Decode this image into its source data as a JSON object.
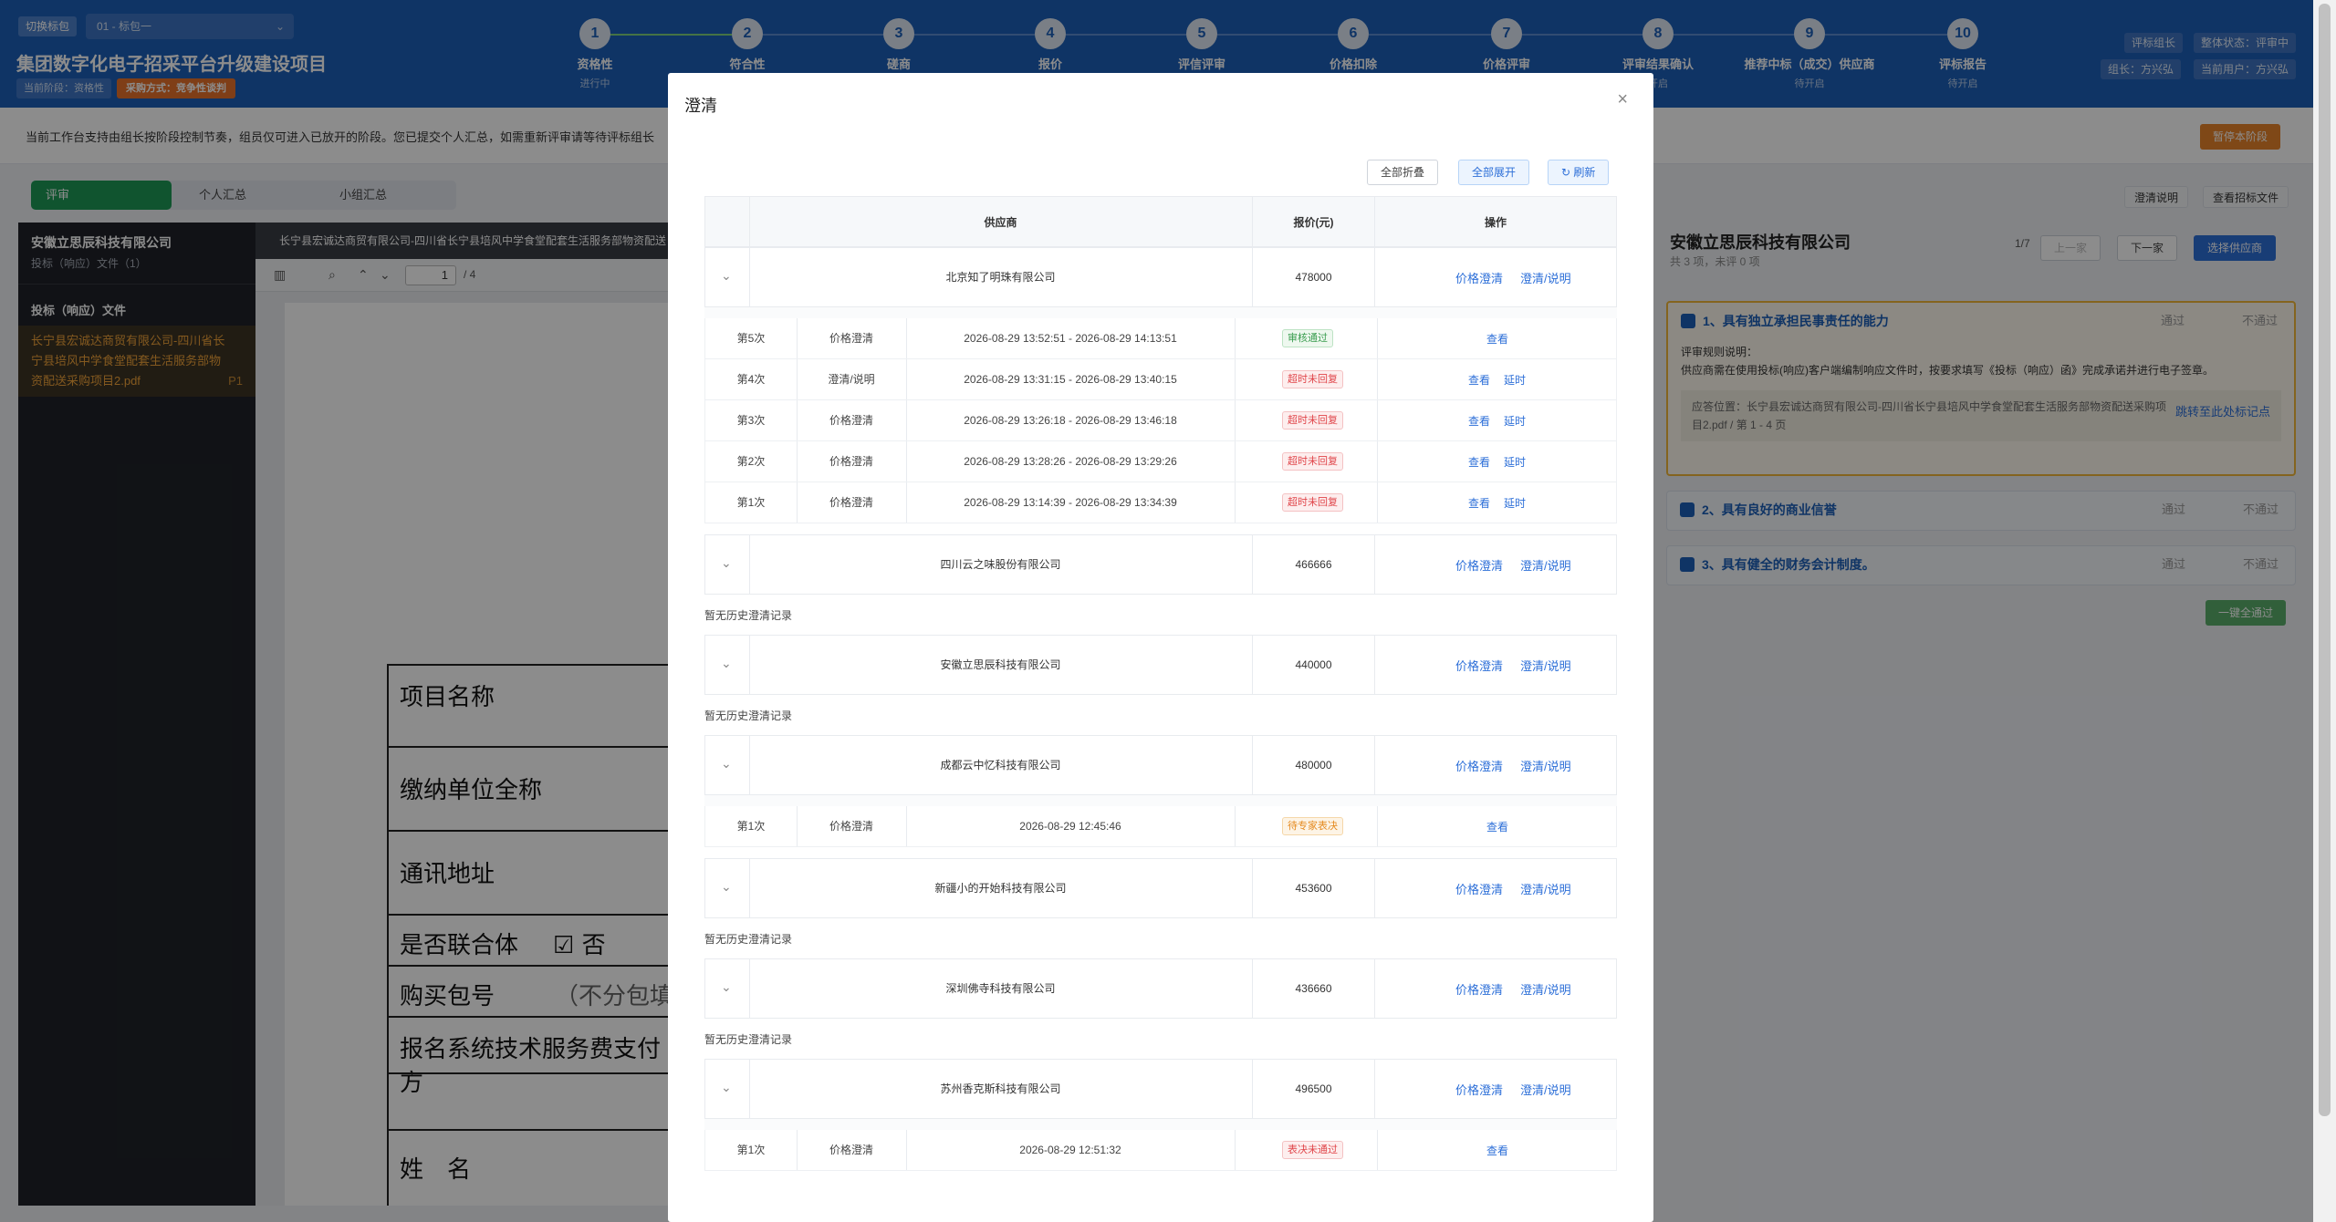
{
  "header": {
    "switch_label": "切换标包",
    "package_select": "01 - 标包一",
    "project_title": "集团数字化电子招采平台升级建设项目",
    "phase_label": "当前阶段：资格性",
    "method_label": "采购方式：竞争性谈判",
    "steps": [
      {
        "num": "1",
        "label": "资格性",
        "status": "进行中"
      },
      {
        "num": "2",
        "label": "符合性",
        "status": ""
      },
      {
        "num": "3",
        "label": "磋商",
        "status": ""
      },
      {
        "num": "4",
        "label": "报价",
        "status": ""
      },
      {
        "num": "5",
        "label": "评信评审",
        "status": ""
      },
      {
        "num": "6",
        "label": "价格扣除",
        "status": ""
      },
      {
        "num": "7",
        "label": "价格评审",
        "status": ""
      },
      {
        "num": "8",
        "label": "评审结果确认",
        "status": "开启"
      },
      {
        "num": "9",
        "label": "推荐中标（成交）供应商",
        "status": "待开启"
      },
      {
        "num": "10",
        "label": "评标报告",
        "status": "待开启"
      }
    ],
    "badges": {
      "role": "评标组长",
      "overall": "整体状态：评审中",
      "leader": "组长：方兴弘",
      "user": "当前用户：方兴弘"
    }
  },
  "notice": {
    "text": "当前工作台支持由组长按阶段控制节奏，组员仅可进入已放开的阶段。您已提交个人汇总，如需重新评审请等待评标组长",
    "pause_button": "暂停本阶段"
  },
  "tabs": [
    "评审",
    "个人汇总",
    "小组汇总"
  ],
  "left_panel": {
    "company": "安徽立思辰科技有限公司",
    "sub": "投标（响应）文件（1）",
    "section": "投标（响应）文件",
    "file_lines": [
      "长宁县宏诚达商贸有限公司-四川省长",
      "宁县培风中学食堂配套生活服务部物",
      "资配送采购项目2.pdf"
    ],
    "file_page": "P1"
  },
  "doc": {
    "title": "长宁县宏诚达商贸有限公司-四川省长宁县培风中学食堂配套生活服务部物资配送",
    "page_current": "1",
    "page_total": "/ 4",
    "rows": [
      {
        "label": "项目名称"
      },
      {
        "label": "缴纳单位全称"
      },
      {
        "label": "通讯地址"
      },
      {
        "label": "是否联合体",
        "extra": "☑ 否"
      },
      {
        "label": "购买包号",
        "extra": "（不分包填"
      },
      {
        "label": "报名系统技术服务费支付方"
      },
      {
        "label": ""
      },
      {
        "label": "姓　名"
      }
    ]
  },
  "right_area": {
    "link_clarify": "澄清说明",
    "link_view": "查看招标文件",
    "company": "安徽立思辰科技有限公司",
    "summary": "共 3 项，未评 0 项",
    "nav": "1/7",
    "prev": "上一家",
    "next": "下一家",
    "choose": "选择供应商",
    "criteria": [
      {
        "title": "1、具有独立承担民事责任的能力",
        "pass": "通过",
        "fail": "不通过",
        "rule_title": "评审规则说明：",
        "rule_text": "供应商需在使用投标(响应)客户端编制响应文件时，按要求填写《投标（响应）函》完成承诺并进行电子签章。",
        "loc_text": "应答位置：长宁县宏诚达商贸有限公司-四川省长宁县培风中学食堂配套生活服务部物资配送采购项目2.pdf / 第 1 - 4 页",
        "jump": "跳转至此处标记点"
      },
      {
        "title": "2、具有良好的商业信誉",
        "pass": "通过",
        "fail": "不通过"
      },
      {
        "title": "3、具有健全的财务会计制度。",
        "pass": "通过",
        "fail": "不通过"
      }
    ],
    "all_pass": "一键全通过"
  },
  "modal": {
    "title": "澄清",
    "collapse_all": "全部折叠",
    "expand_all": "全部展开",
    "refresh": "刷新",
    "columns": {
      "supplier": "供应商",
      "price": "报价(元)",
      "action": "操作"
    },
    "action_price": "价格澄清",
    "action_clarify": "澄清/说明",
    "view": "查看",
    "extend": "延时",
    "no_history": "暂无历史澄清记录",
    "suppliers": [
      {
        "name": "北京知了明珠有限公司",
        "price": "478000",
        "history": [
          {
            "round": "第5次",
            "type": "价格澄清",
            "time": "2026-08-29 13:52:51 - 2026-08-29 14:13:51",
            "status": "审核通过",
            "kind": "ok",
            "extend": false
          },
          {
            "round": "第4次",
            "type": "澄清/说明",
            "time": "2026-08-29 13:31:15 - 2026-08-29 13:40:15",
            "status": "超时未回复",
            "kind": "bad",
            "extend": true
          },
          {
            "round": "第3次",
            "type": "价格澄清",
            "time": "2026-08-29 13:26:18 - 2026-08-29 13:46:18",
            "status": "超时未回复",
            "kind": "bad",
            "extend": true
          },
          {
            "round": "第2次",
            "type": "价格澄清",
            "time": "2026-08-29 13:28:26 - 2026-08-29 13:29:26",
            "status": "超时未回复",
            "kind": "bad",
            "extend": true
          },
          {
            "round": "第1次",
            "type": "价格澄清",
            "time": "2026-08-29 13:14:39 - 2026-08-29 13:34:39",
            "status": "超时未回复",
            "kind": "bad",
            "extend": true
          }
        ]
      },
      {
        "name": "四川云之味股份有限公司",
        "price": "466666",
        "history": []
      },
      {
        "name": "安徽立思辰科技有限公司",
        "price": "440000",
        "history": []
      },
      {
        "name": "成都云中忆科技有限公司",
        "price": "480000",
        "history": [
          {
            "round": "第1次",
            "type": "价格澄清",
            "time": "2026-08-29 12:45:46",
            "status": "待专家表决",
            "kind": "warn",
            "extend": false
          }
        ]
      },
      {
        "name": "新疆小的开始科技有限公司",
        "price": "453600",
        "history": []
      },
      {
        "name": "深圳佛寺科技有限公司",
        "price": "436660",
        "history": []
      },
      {
        "name": "苏州香克斯科技有限公司",
        "price": "496500",
        "history": [
          {
            "round": "第1次",
            "type": "价格澄清",
            "time": "2026-08-29 12:51:32",
            "status": "表决未通过",
            "kind": "bad",
            "extend": false
          }
        ]
      }
    ]
  }
}
